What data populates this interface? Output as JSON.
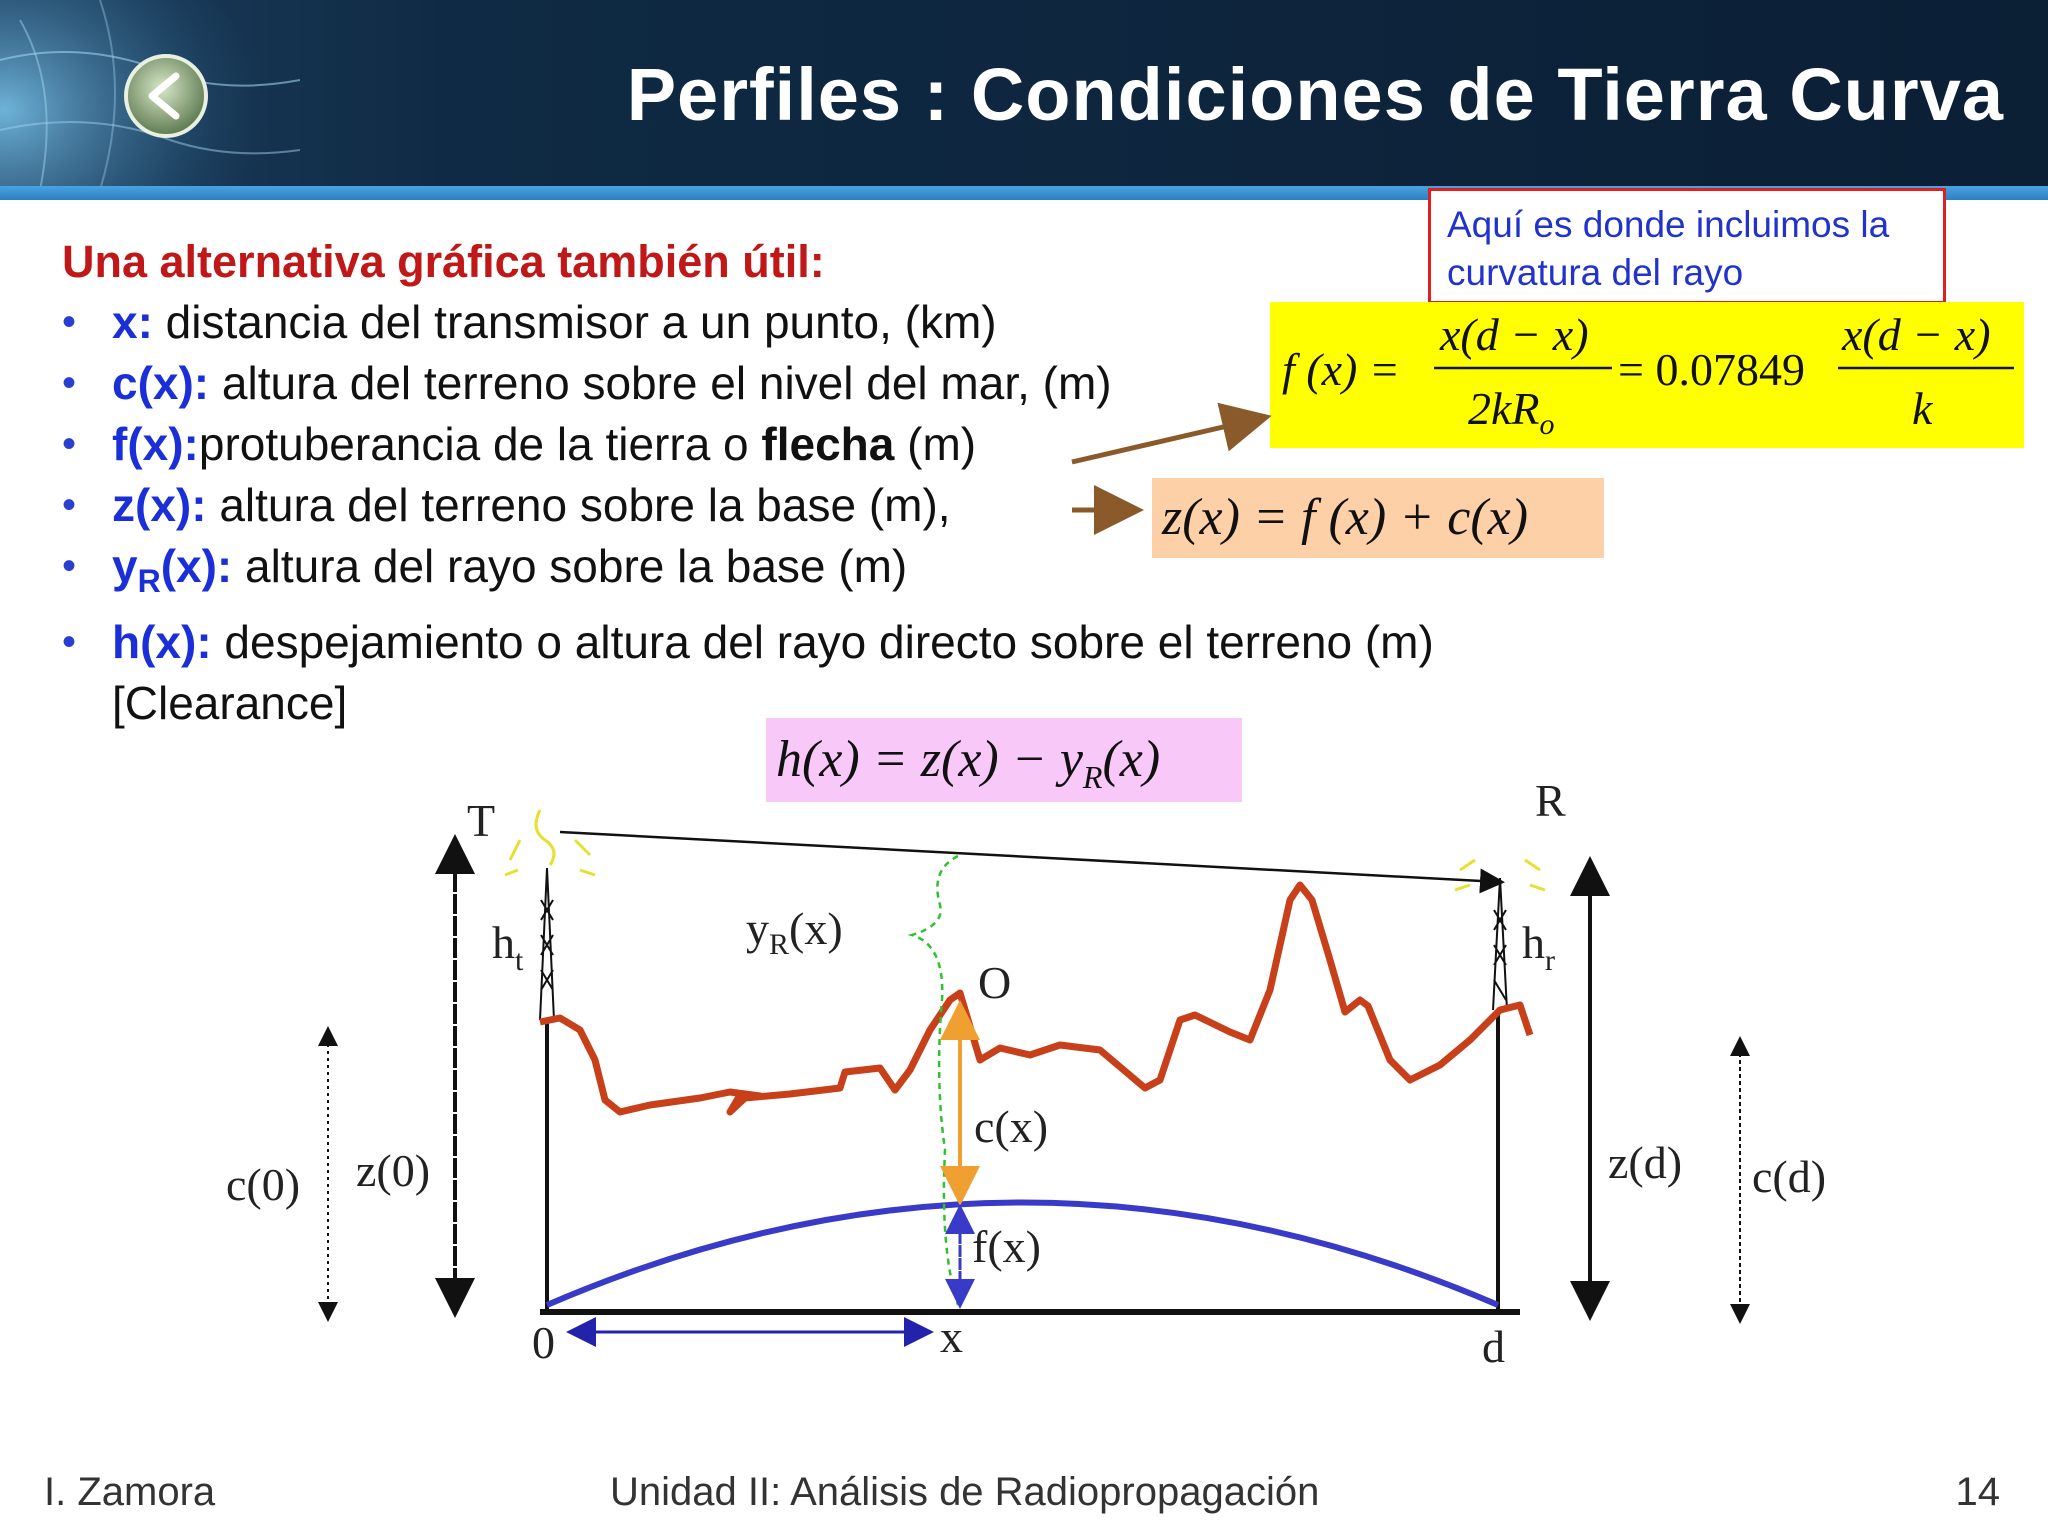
{
  "slide": {
    "title": "Perfiles : Condiciones de Tierra Curva",
    "note": "Aquí es donde incluimos la curvatura del rayo",
    "intro": "Una alternativa gráfica también útil:",
    "bullets": [
      {
        "term": "x:",
        "text": " distancia del transmisor a un punto, (km)"
      },
      {
        "term": "c(x):",
        "text": " altura del terreno sobre el nivel del mar, (m)"
      },
      {
        "term": "f(x):",
        "text": "protuberancia de la tierra o ",
        "bold": "flecha",
        "tail": " (m)"
      },
      {
        "term": "z(x):",
        "text": " altura del terreno sobre la base (m),"
      },
      {
        "term_main": "y",
        "term_sub": "R",
        "term_rest": "(x):",
        "text": " altura del rayo sobre la base (m)"
      },
      {
        "term": "h(x):",
        "text": " despejamiento o altura del rayo directo sobre el terreno (m)",
        "cont": "[Clearance]"
      }
    ],
    "formulas": {
      "fx_lhs": "f (x) =",
      "fx_num": "x(d − x)",
      "fx_den_main": "2kR",
      "fx_den_sub": "o",
      "fx_eq": "= 0.07849",
      "fx_num2": "x(d − x)",
      "fx_den2": "k",
      "zx": "z(x) = f (x) + c(x)",
      "hx_main": "h(x) = z(x) − y",
      "hx_sub": "R",
      "hx_tail": "(x)"
    },
    "diagram": {
      "T": "T",
      "R": "R",
      "ht_main": "h",
      "ht_sub": "t",
      "hr_main": "h",
      "hr_sub": "r",
      "yr_main": "y",
      "yr_sub": "R",
      "yr_tail": "(x)",
      "O": "O",
      "cx": "c(x)",
      "fx": "f(x)",
      "c0": "c(0)",
      "z0": "z(0)",
      "zd": "z(d)",
      "cd": "c(d)",
      "zero": "0",
      "x": "x",
      "d": "d"
    },
    "colors": {
      "terrain": "#c8401a",
      "bulge": "#3a3ac8",
      "cx_arrow": "#f0a030",
      "fx_arrow": "#3a3ac8",
      "yr_brace": "#30c030",
      "arrow_brown": "#8b5a2b",
      "fx_box": "#ffff00",
      "zx_box": "#fdd0a8",
      "hx_box": "#f8c8f8"
    }
  },
  "footer": {
    "author": "I. Zamora",
    "course": "Unidad II: Análisis de Radiopropagación",
    "page": "14"
  }
}
